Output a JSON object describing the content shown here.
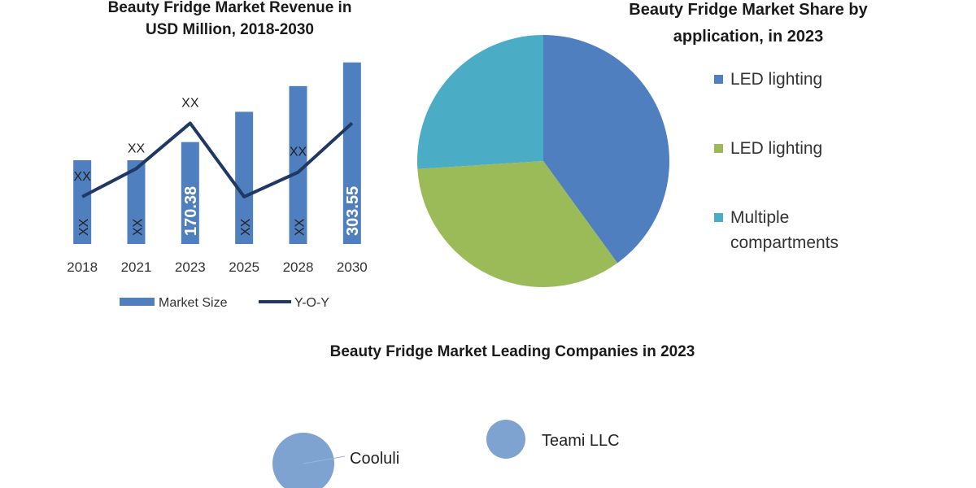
{
  "chart_data": [
    {
      "type": "bar_line",
      "title": "Beauty Fridge Market Revenue in USD Million, 2018-2030",
      "categories": [
        "2018",
        "2021",
        "2023",
        "2025",
        "2028",
        "2030"
      ],
      "ylim": [
        0,
        310
      ],
      "series": [
        {
          "name": "Market Size",
          "type": "bar",
          "color": "#4f7fbf",
          "values": [
            140,
            140,
            170.38,
            221,
            264,
            303.55
          ],
          "value_labels": [
            "XX",
            "XX",
            "170.38",
            "XX",
            "XX",
            "303.55"
          ]
        },
        {
          "name": "Y-O-Y",
          "type": "line",
          "color": "#1f3864",
          "values": [
            79,
            126,
            202,
            79,
            120,
            202
          ],
          "value_labels": [
            "XX",
            "XX",
            "XX",
            null,
            "XX",
            null
          ]
        }
      ]
    },
    {
      "type": "pie",
      "title": "Beauty Fridge Market Share by application, in 2023",
      "categories": [
        "LED lighting",
        "LED lighting",
        "Multiple compartments"
      ],
      "values": [
        40,
        34,
        26
      ],
      "colors": [
        "#4f7fbf",
        "#9bbb59",
        "#4bacc6"
      ]
    },
    {
      "type": "bubble",
      "title": "Beauty Fridge Market Leading Companies in 2023",
      "categories": [
        "Cooluli",
        "Teami LLC"
      ],
      "sizes": [
        38,
        24
      ],
      "color": "#7fa3d0"
    }
  ]
}
